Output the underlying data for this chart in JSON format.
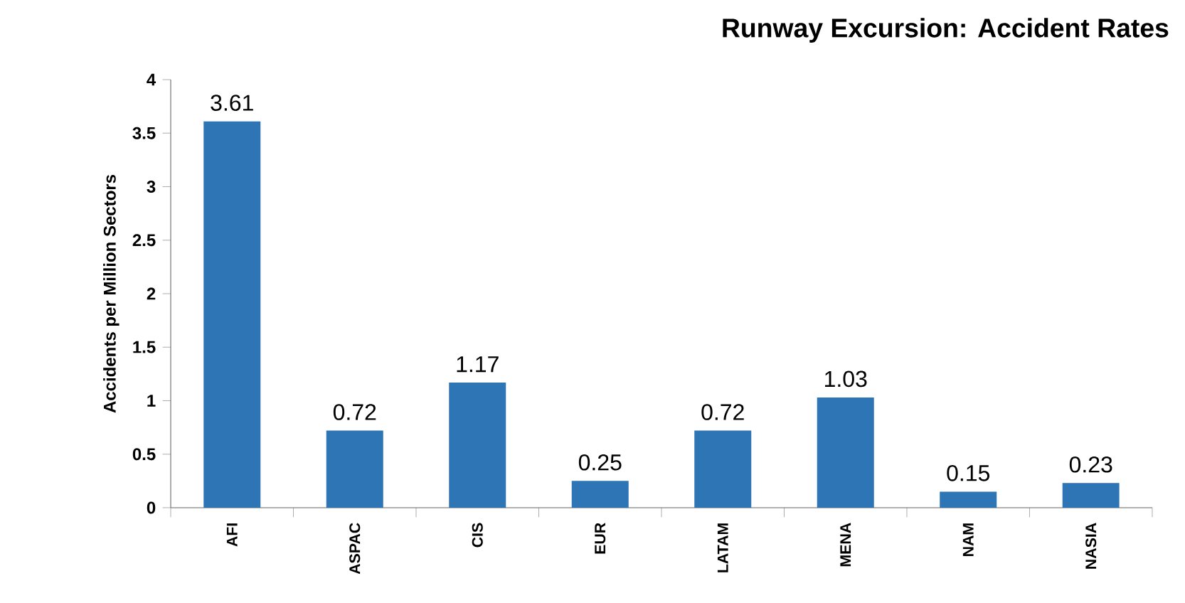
{
  "chart_data": {
    "type": "bar",
    "title": "Runway Excursion: Accident Rates",
    "ylabel": "Accidents per Million Sectors",
    "categories": [
      "AFI",
      "ASPAC",
      "CIS",
      "EUR",
      "LATAM",
      "MENA",
      "NAM",
      "NASIA"
    ],
    "values": [
      3.61,
      0.72,
      1.17,
      0.25,
      0.72,
      1.03,
      0.15,
      0.23
    ],
    "color": "#2e75b6",
    "ylim": [
      0,
      4
    ],
    "yticks": [
      0,
      0.5,
      1,
      1.5,
      2,
      2.5,
      3,
      3.5,
      4
    ],
    "data_labels": true
  }
}
